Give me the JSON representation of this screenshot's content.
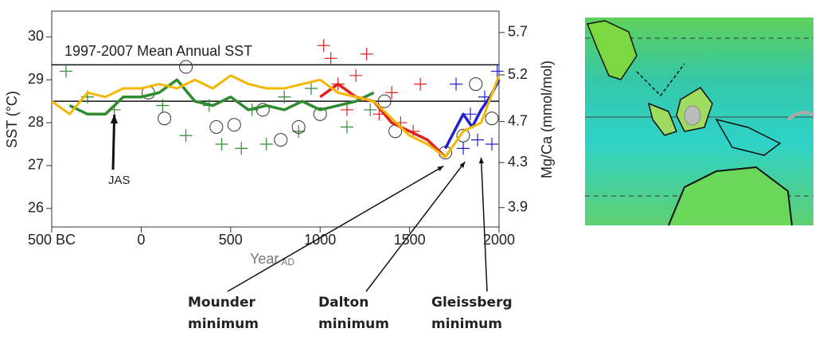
{
  "chart_data": {
    "type": "line",
    "xlabel": "Year",
    "xlabel_sub": "AD",
    "ylabel": "SST (°C)",
    "y2label": "Mg/Ca (mmol/mol)",
    "xlim": [
      -500,
      2000
    ],
    "xticks": [
      {
        "value": -500,
        "label": "500 BC"
      },
      0,
      500,
      1000,
      1500,
      2000
    ],
    "ylim": [
      25.57,
      30.6
    ],
    "yticks": [
      26,
      27,
      28,
      29,
      30
    ],
    "y2lim": [
      3.74,
      5.97
    ],
    "y2scale": "log",
    "y2ticks": [
      3.9,
      4.3,
      4.7,
      5.2,
      5.7
    ],
    "reference_lines": [
      {
        "value": 29.35,
        "label": "1997-2007 Mean Annual SST"
      },
      {
        "value": 28.5
      }
    ],
    "series": [
      {
        "color": "#2e8b2e",
        "marker": "+",
        "x": [
          -420,
          -300,
          -150,
          120,
          250,
          380,
          450,
          560,
          620,
          700,
          800,
          880,
          950,
          1150,
          1280
        ],
        "values": [
          29.2,
          28.6,
          28.3,
          28.4,
          27.7,
          28.4,
          27.5,
          27.4,
          28.3,
          27.5,
          28.6,
          27.8,
          28.8,
          27.9,
          28.3
        ]
      },
      {
        "color": "#e02020",
        "marker": "+",
        "x": [
          1020,
          1060,
          1100,
          1150,
          1200,
          1260,
          1330,
          1400,
          1450,
          1520,
          1560
        ],
        "values": [
          29.8,
          29.5,
          28.9,
          28.3,
          29.1,
          29.6,
          28.2,
          28.7,
          28.0,
          27.8,
          28.9
        ]
      },
      {
        "color": "#2020d0",
        "marker": "+",
        "x": [
          1760,
          1800,
          1840,
          1880,
          1920,
          1960,
          1990
        ],
        "values": [
          28.9,
          27.4,
          28.2,
          27.6,
          28.6,
          27.5,
          29.2
        ]
      },
      {
        "color": "#333333",
        "marker": "o",
        "x": [
          40,
          130,
          250,
          420,
          520,
          680,
          780,
          880,
          1000,
          1360,
          1420,
          1700,
          1800,
          1870,
          1960
        ],
        "values": [
          28.7,
          28.1,
          29.3,
          27.9,
          27.95,
          28.3,
          27.6,
          27.9,
          28.2,
          28.5,
          27.8,
          27.3,
          27.7,
          28.9,
          28.1
        ]
      },
      {
        "color": "#2e8b2e",
        "width": 3.5,
        "x": [
          -400,
          -300,
          -200,
          -100,
          0,
          100,
          200,
          300,
          400,
          500,
          600,
          700,
          800,
          900,
          1000,
          1100,
          1200,
          1300
        ],
        "values": [
          28.4,
          28.2,
          28.2,
          28.6,
          28.6,
          28.7,
          29.0,
          28.5,
          28.4,
          28.6,
          28.3,
          28.4,
          28.3,
          28.5,
          28.3,
          28.4,
          28.5,
          28.7
        ]
      },
      {
        "color": "#e02020",
        "width": 3.5,
        "x": [
          1000,
          1100,
          1200,
          1300,
          1400,
          1500,
          1600,
          1700
        ],
        "values": [
          28.6,
          28.9,
          28.6,
          28.5,
          28.0,
          27.8,
          27.6,
          27.2
        ]
      },
      {
        "color": "#2020d0",
        "width": 3.5,
        "x": [
          1700,
          1750,
          1800,
          1850,
          1900,
          1950,
          2000
        ],
        "values": [
          27.4,
          27.8,
          28.2,
          27.9,
          28.3,
          28.6,
          29.0
        ]
      },
      {
        "color": "#f2b800",
        "width": 3,
        "x": [
          -500,
          -400,
          -300,
          -200,
          -100,
          0,
          100,
          200,
          300,
          400,
          500,
          600,
          700,
          800,
          900,
          1000,
          1100,
          1200,
          1300,
          1400,
          1500,
          1600,
          1700,
          1800,
          1900,
          2000
        ],
        "values": [
          28.5,
          28.2,
          28.7,
          28.6,
          28.8,
          28.8,
          28.9,
          28.8,
          29.0,
          28.8,
          29.1,
          28.9,
          28.8,
          28.8,
          28.9,
          29.0,
          28.7,
          28.6,
          28.5,
          28.1,
          27.7,
          27.5,
          27.2,
          27.8,
          28.0,
          29.1
        ]
      }
    ],
    "annotations": [
      {
        "text": [
          "JAS"
        ],
        "x": -150,
        "y": 28.3
      },
      {
        "text": [
          "Mounder",
          "minimum"
        ],
        "x": 1690,
        "y": 27.1
      },
      {
        "text": [
          "Dalton",
          "minimum"
        ],
        "x": 1810,
        "y": 27.2
      },
      {
        "text": [
          "Gleissberg",
          "minimum"
        ],
        "x": 1900,
        "y": 27.3
      }
    ]
  }
}
